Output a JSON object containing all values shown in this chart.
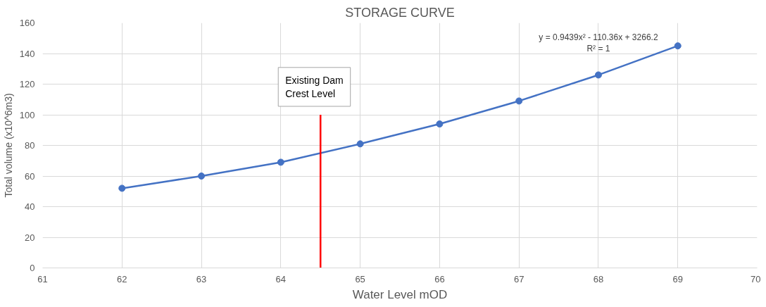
{
  "chart_data": {
    "type": "line",
    "title": "STORAGE CURVE",
    "xlabel": "Water Level mOD",
    "ylabel": "Total volume (x10^6m3)",
    "xlim": [
      61,
      70
    ],
    "xticks": [
      61,
      62,
      63,
      64,
      65,
      66,
      67,
      68,
      69,
      70
    ],
    "ylim": [
      0,
      160
    ],
    "yticks": [
      0,
      20,
      40,
      60,
      80,
      100,
      120,
      140,
      160
    ],
    "grid": true,
    "series": [
      {
        "color": "#4472c4",
        "marker": "circle",
        "x": [
          62,
          63,
          64,
          65,
          66,
          67,
          68,
          69
        ],
        "values": [
          52,
          60,
          69,
          81,
          94,
          109,
          126,
          145
        ]
      },
      {
        "type": "line",
        "color": "#ff0000",
        "marker": "none",
        "x": [
          64.5,
          64.5
        ],
        "values": [
          0,
          100
        ]
      }
    ],
    "annotations": [
      {
        "text": "Existing Dam\nCrest Level",
        "x": 64.5,
        "y": 100
      },
      {
        "text": "y = 0.9439x² - 110.36x + 3266.2\nR² = 1",
        "x": 68,
        "y": 126
      }
    ]
  }
}
